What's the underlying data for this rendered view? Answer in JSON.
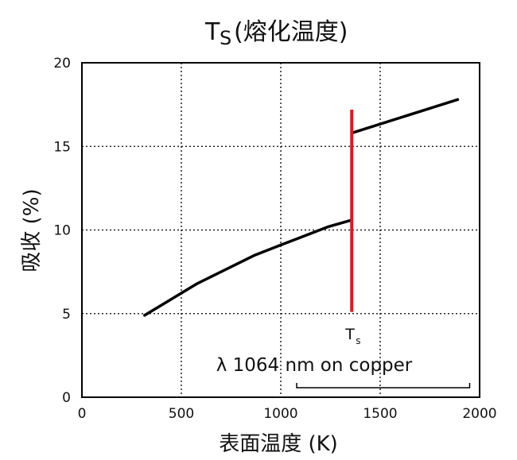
{
  "chart_data": {
    "type": "line",
    "title": {
      "main": "T",
      "sub": "S",
      "suffix": "(熔化温度)"
    },
    "xlabel": "表面温度 (K)",
    "ylabel": "吸收 (%)",
    "xlim": [
      0,
      2000
    ],
    "ylim": [
      0,
      20
    ],
    "xticks": [
      0,
      500,
      1000,
      1500,
      2000
    ],
    "yticks": [
      0,
      5,
      10,
      15,
      20
    ],
    "xtick_labels": [
      "0",
      "500",
      "1000",
      "1500",
      "2000"
    ],
    "ytick_labels": [
      "0",
      "5",
      "10",
      "15",
      "20"
    ],
    "grid": true,
    "series": [
      {
        "segment": "solid",
        "color": "#000000",
        "points": [
          [
            315,
            4.9
          ],
          [
            580,
            6.8
          ],
          [
            870,
            8.5
          ],
          [
            1000,
            9.1
          ],
          [
            1240,
            10.2
          ],
          [
            1357,
            10.6
          ]
        ]
      },
      {
        "segment": "liquid",
        "color": "#000000",
        "points": [
          [
            1357,
            15.8
          ],
          [
            1890,
            17.8
          ]
        ]
      }
    ],
    "melting_line": {
      "x": 1357,
      "y_from": 5.1,
      "y_to": 17.2,
      "color": "#e8141c",
      "label": "T",
      "label_sub": "s"
    },
    "annotation": {
      "text": "λ 1064 nm on copper",
      "bracket_from": 1080,
      "bracket_to": 1950
    }
  }
}
